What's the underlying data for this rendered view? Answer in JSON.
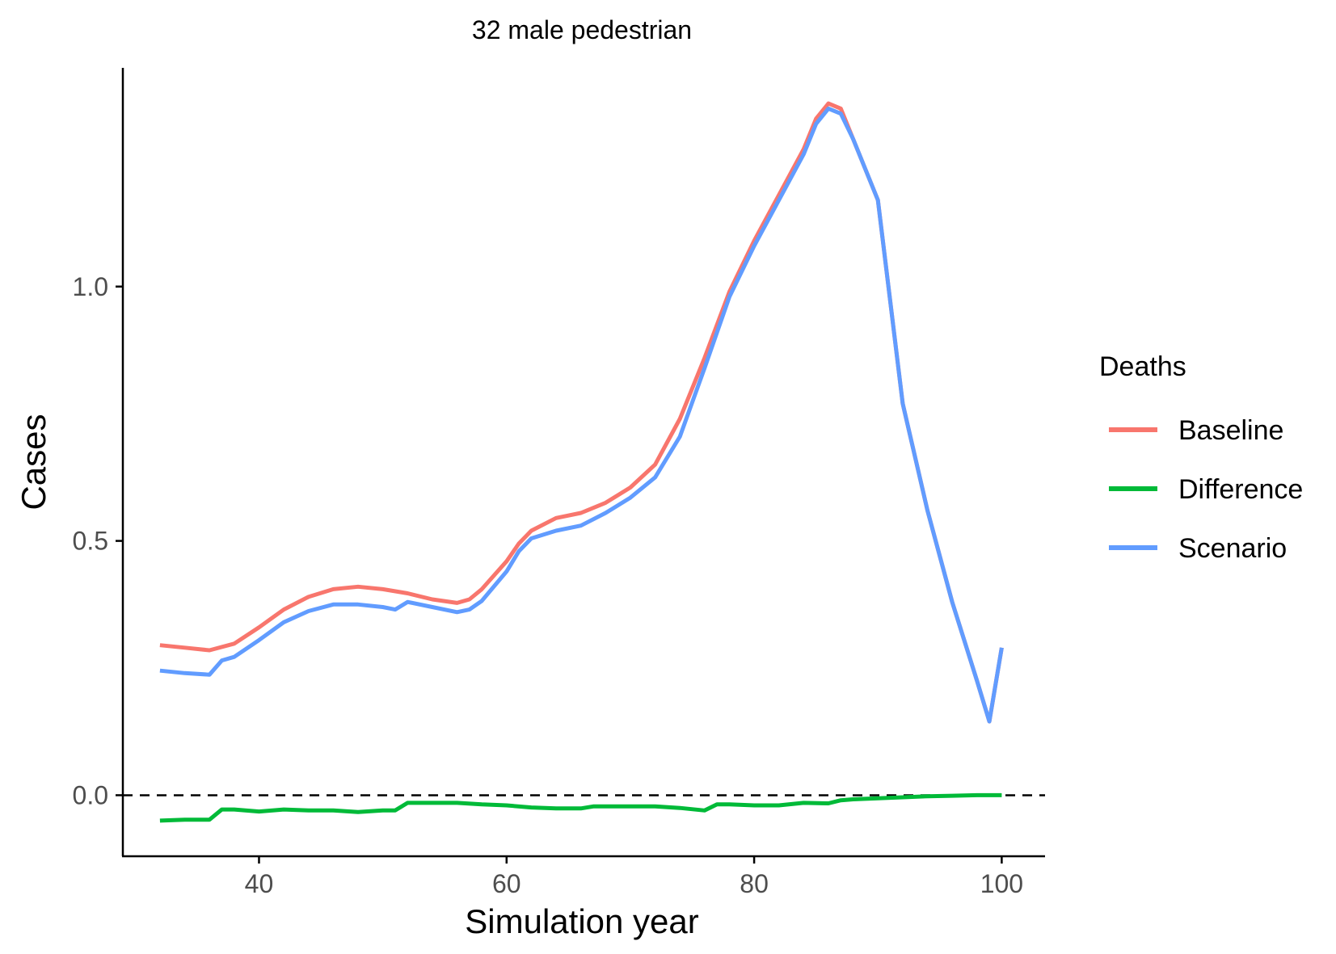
{
  "chart_data": {
    "type": "line",
    "title": "32 male pedestrian",
    "xlabel": "Simulation year",
    "ylabel": "Cases",
    "xlim": [
      29,
      103.5
    ],
    "ylim": [
      -0.12,
      1.43
    ],
    "x_ticks": [
      40,
      60,
      80,
      100
    ],
    "x_tick_labels": [
      "40",
      "60",
      "80",
      "100"
    ],
    "y_ticks": [
      0.0,
      0.5,
      1.0
    ],
    "y_tick_labels": [
      "0.0",
      "0.5",
      "1.0"
    ],
    "reference_line": {
      "y": 0.0,
      "style": "dashed",
      "color": "#000000"
    },
    "grid": false,
    "legend": {
      "title": "Deaths",
      "position": "right"
    },
    "series": [
      {
        "name": "Baseline",
        "color": "#F8766D",
        "x": [
          32,
          34,
          36,
          38,
          40,
          42,
          44,
          46,
          48,
          50,
          52,
          54,
          56,
          57,
          58,
          60,
          61,
          62,
          64,
          66,
          68,
          70,
          72,
          74,
          76,
          78,
          80,
          82,
          84,
          85,
          86,
          87,
          88,
          90,
          92,
          94,
          96,
          98,
          99,
          100
        ],
        "y": [
          0.295,
          0.29,
          0.285,
          0.298,
          0.33,
          0.365,
          0.39,
          0.405,
          0.41,
          0.405,
          0.397,
          0.385,
          0.378,
          0.385,
          0.405,
          0.46,
          0.495,
          0.52,
          0.545,
          0.555,
          0.575,
          0.605,
          0.65,
          0.74,
          0.86,
          0.99,
          1.09,
          1.18,
          1.27,
          1.33,
          1.36,
          1.35,
          1.29,
          1.17,
          0.77,
          0.56,
          0.38,
          0.225,
          0.145,
          0.29
        ]
      },
      {
        "name": "Difference",
        "color": "#00BA38",
        "x": [
          32,
          34,
          36,
          37,
          38,
          40,
          42,
          44,
          46,
          48,
          50,
          51,
          52,
          54,
          56,
          58,
          60,
          62,
          64,
          66,
          67,
          68,
          70,
          72,
          74,
          76,
          77,
          78,
          80,
          82,
          84,
          86,
          87,
          88,
          90,
          92,
          94,
          96,
          98,
          100
        ],
        "y": [
          -0.05,
          -0.048,
          -0.048,
          -0.028,
          -0.028,
          -0.032,
          -0.028,
          -0.03,
          -0.03,
          -0.033,
          -0.03,
          -0.03,
          -0.015,
          -0.015,
          -0.015,
          -0.018,
          -0.02,
          -0.024,
          -0.026,
          -0.026,
          -0.022,
          -0.022,
          -0.022,
          -0.022,
          -0.025,
          -0.03,
          -0.018,
          -0.018,
          -0.02,
          -0.02,
          -0.015,
          -0.016,
          -0.01,
          -0.008,
          -0.006,
          -0.004,
          -0.002,
          -0.001,
          0.0,
          0.0
        ]
      },
      {
        "name": "Scenario",
        "color": "#619CFF",
        "x": [
          32,
          34,
          36,
          37,
          38,
          40,
          42,
          44,
          46,
          48,
          50,
          51,
          52,
          54,
          56,
          57,
          58,
          60,
          61,
          62,
          64,
          66,
          68,
          70,
          72,
          74,
          76,
          78,
          80,
          82,
          84,
          85,
          86,
          87,
          88,
          90,
          92,
          94,
          96,
          98,
          99,
          100
        ],
        "y": [
          0.245,
          0.24,
          0.237,
          0.265,
          0.272,
          0.305,
          0.34,
          0.362,
          0.375,
          0.375,
          0.37,
          0.365,
          0.38,
          0.37,
          0.36,
          0.365,
          0.382,
          0.44,
          0.48,
          0.505,
          0.52,
          0.53,
          0.555,
          0.585,
          0.625,
          0.705,
          0.84,
          0.98,
          1.08,
          1.17,
          1.26,
          1.32,
          1.35,
          1.34,
          1.29,
          1.17,
          0.77,
          0.56,
          0.38,
          0.225,
          0.145,
          0.29
        ]
      }
    ]
  }
}
